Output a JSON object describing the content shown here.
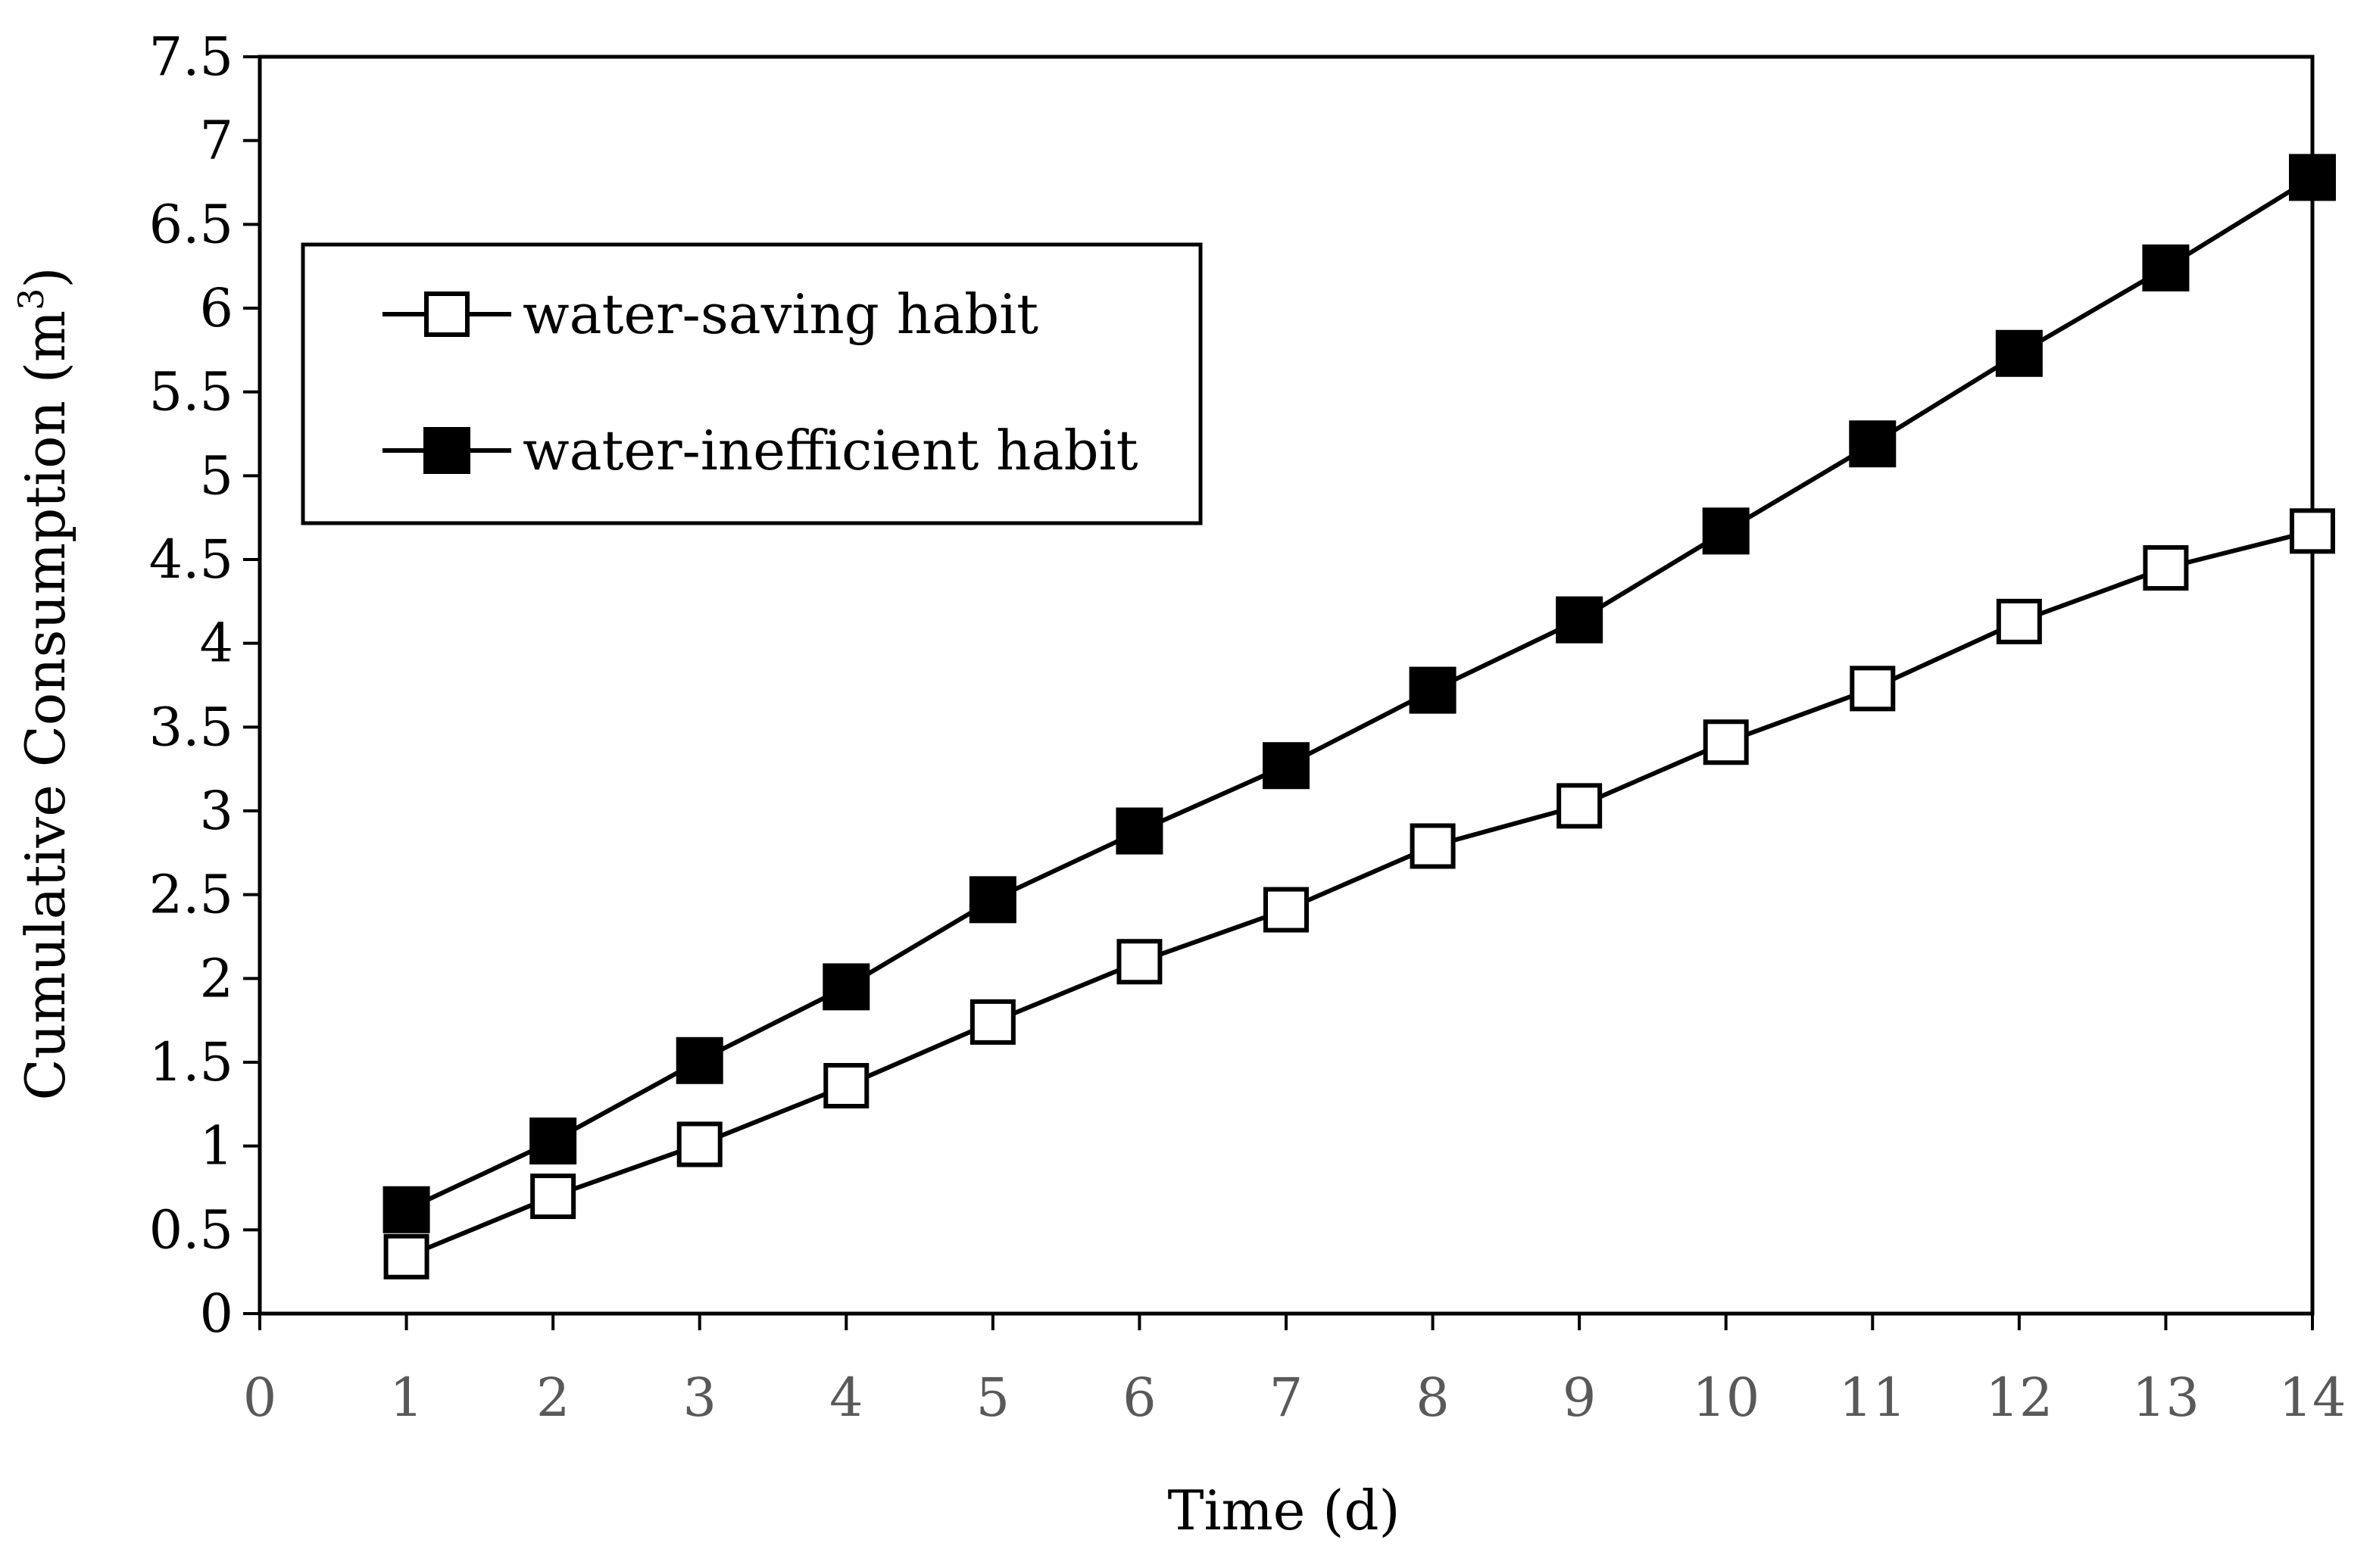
{
  "chart_data": {
    "type": "line",
    "title": "",
    "xlabel": "Time (d)",
    "ylabel": "Cumulative Consumption (m",
    "ylabel_superscript": "3",
    "ylabel_close": ")",
    "xlim": [
      0,
      14
    ],
    "ylim": [
      0,
      7.5
    ],
    "x_ticks": [
      "0",
      "1",
      "2",
      "3",
      "4",
      "5",
      "6",
      "7",
      "8",
      "9",
      "10",
      "11",
      "12",
      "13",
      "14"
    ],
    "y_ticks": [
      "0",
      "0.5",
      "1",
      "1.5",
      "2",
      "2.5",
      "3",
      "3.5",
      "4",
      "4.5",
      "5",
      "5.5",
      "6",
      "6.5",
      "7",
      "7.5"
    ],
    "grid": false,
    "legend_position": "top-left",
    "x": [
      1,
      2,
      3,
      4,
      5,
      6,
      7,
      8,
      9,
      10,
      11,
      12,
      13,
      14
    ],
    "series": [
      {
        "name": "water-saving habit",
        "marker": "hollow-square",
        "values": [
          0.34,
          0.7,
          1.01,
          1.36,
          1.74,
          2.1,
          2.41,
          2.79,
          3.03,
          3.41,
          3.73,
          4.13,
          4.45,
          4.67
        ]
      },
      {
        "name": "water-inefficient habit",
        "marker": "filled-square",
        "values": [
          0.62,
          1.03,
          1.51,
          1.95,
          2.47,
          2.88,
          3.27,
          3.72,
          4.14,
          4.67,
          5.19,
          5.73,
          6.24,
          6.78
        ]
      }
    ],
    "colors": {
      "line": "#000000",
      "tick_label_x": "#595959",
      "text": "#000000"
    }
  }
}
